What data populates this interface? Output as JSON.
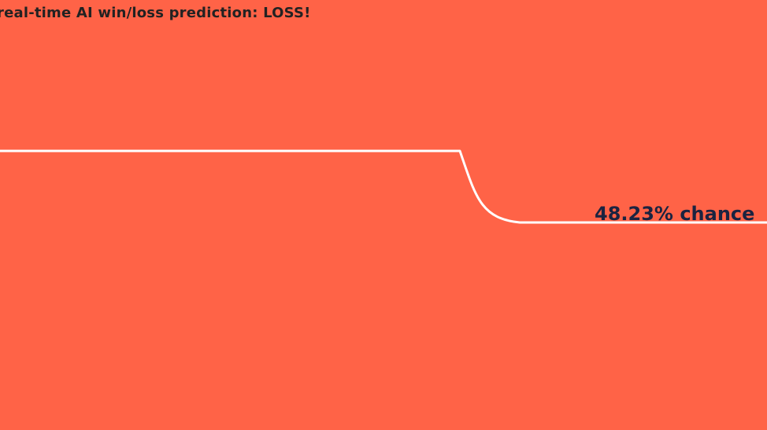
{
  "headline": "real-time AI win/loss prediction: LOSS!",
  "prediction": {
    "percent_text": "48.23% chance",
    "value": 48.23
  },
  "colors": {
    "background": "#FF6347",
    "line": "#FFFFFF",
    "headline_text": "#222222",
    "percent_text": "#1B2340"
  }
}
